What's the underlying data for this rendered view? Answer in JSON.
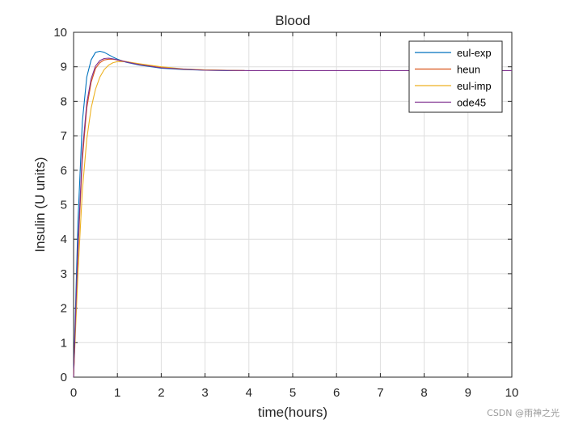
{
  "chart_data": {
    "type": "line",
    "title": "Blood",
    "xlabel": "time(hours)",
    "ylabel": "Insulin (U units)",
    "xlim": [
      0,
      10
    ],
    "ylim": [
      0,
      10
    ],
    "xticks": [
      "0",
      "1",
      "2",
      "3",
      "4",
      "5",
      "6",
      "7",
      "8",
      "9",
      "10"
    ],
    "yticks": [
      "0",
      "1",
      "2",
      "3",
      "4",
      "5",
      "6",
      "7",
      "8",
      "9",
      "10"
    ],
    "grid": true,
    "legend_position": "top-right",
    "series": [
      {
        "name": "eul-exp",
        "color": "#0072BD",
        "x": [
          0,
          0.1,
          0.2,
          0.3,
          0.4,
          0.5,
          0.6,
          0.7,
          0.8,
          0.9,
          1.0,
          1.2,
          1.5,
          2.0,
          2.5,
          3.0,
          3.5,
          3.9
        ],
        "y": [
          0,
          4.5,
          7.4,
          8.7,
          9.2,
          9.42,
          9.45,
          9.42,
          9.35,
          9.28,
          9.22,
          9.13,
          9.05,
          8.96,
          8.92,
          8.9,
          8.89,
          8.89
        ]
      },
      {
        "name": "heun",
        "color": "#D95319",
        "x": [
          0,
          0.1,
          0.2,
          0.3,
          0.4,
          0.5,
          0.6,
          0.7,
          0.8,
          0.9,
          1.0,
          1.2,
          1.5,
          2.0,
          2.5,
          3.0,
          3.5,
          3.9
        ],
        "y": [
          0,
          3.6,
          6.3,
          7.8,
          8.55,
          8.95,
          9.12,
          9.2,
          9.22,
          9.22,
          9.2,
          9.15,
          9.07,
          8.98,
          8.93,
          8.91,
          8.9,
          8.89
        ]
      },
      {
        "name": "eul-imp",
        "color": "#EDB120",
        "x": [
          0,
          0.1,
          0.2,
          0.3,
          0.4,
          0.5,
          0.6,
          0.7,
          0.8,
          0.9,
          1.0,
          1.2,
          1.5,
          2.0,
          2.5,
          3.0,
          3.5,
          3.9
        ],
        "y": [
          0,
          3.0,
          5.4,
          6.9,
          7.8,
          8.35,
          8.7,
          8.92,
          9.05,
          9.12,
          9.15,
          9.15,
          9.09,
          9.0,
          8.94,
          8.91,
          8.9,
          8.89
        ]
      },
      {
        "name": "ode45",
        "color": "#7E2F8E",
        "x": [
          0,
          0.1,
          0.2,
          0.3,
          0.4,
          0.5,
          0.6,
          0.7,
          0.8,
          0.9,
          1.0,
          1.2,
          1.5,
          2.0,
          3.0,
          4.0,
          5.0,
          6.0,
          7.0,
          8.0,
          9.0,
          10.0
        ],
        "y": [
          0,
          3.8,
          6.5,
          7.95,
          8.65,
          9.02,
          9.18,
          9.24,
          9.25,
          9.23,
          9.2,
          9.14,
          9.06,
          8.97,
          8.9,
          8.89,
          8.89,
          8.89,
          8.89,
          8.89,
          8.89,
          8.89
        ]
      }
    ]
  },
  "watermark": "CSDN @雨神之光"
}
